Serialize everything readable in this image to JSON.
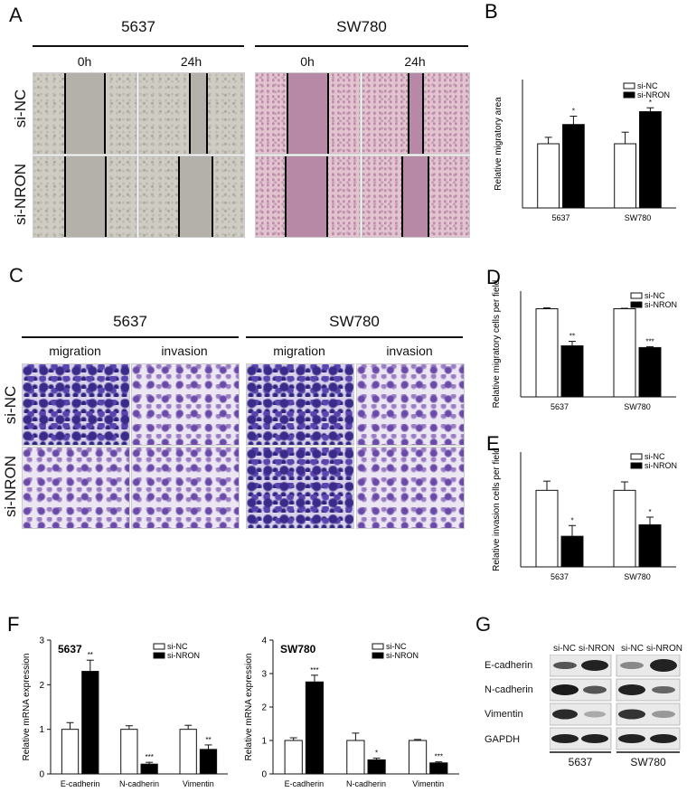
{
  "panels": {
    "A": {
      "label": "A",
      "groups": [
        "5637",
        "SW780"
      ],
      "timepoints": [
        "0h",
        "24h",
        "0h",
        "24h"
      ],
      "rows": [
        "si-NC",
        "si-NRON"
      ]
    },
    "C": {
      "label": "C",
      "groups": [
        "5637",
        "SW780"
      ],
      "assays": [
        "migration",
        "invasion",
        "migration",
        "invasion"
      ],
      "rows": [
        "si-NC",
        "si-NRON"
      ]
    },
    "G": {
      "label": "G",
      "columns": [
        "si-NC",
        "si-NRON",
        "si-NC",
        "si-NRON"
      ],
      "proteins": [
        "E-cadherin",
        "N-cadherin",
        "Vimentin",
        "GAPDH"
      ],
      "cell_lines": [
        "5637",
        "SW780"
      ]
    }
  },
  "chart_data": [
    {
      "id": "B",
      "label": "B",
      "type": "bar",
      "ylabel": "Relative migratory area",
      "categories": [
        "5637",
        "SW780"
      ],
      "ylim": [
        0,
        2
      ],
      "series": [
        {
          "name": "si-NC",
          "values": [
            1.0,
            1.0
          ],
          "errors": [
            0.1,
            0.18
          ]
        },
        {
          "name": "si-NRON",
          "values": [
            1.3,
            1.5
          ],
          "errors": [
            0.13,
            0.06
          ]
        }
      ],
      "significance": [
        "*",
        "*"
      ]
    },
    {
      "id": "D",
      "label": "D",
      "type": "bar",
      "ylabel": "Relative migratory cells per field",
      "categories": [
        "5637",
        "SW780"
      ],
      "ylim": [
        0,
        1.2
      ],
      "series": [
        {
          "name": "si-NC",
          "values": [
            1.0,
            1.0
          ],
          "errors": [
            0.01,
            0.005
          ]
        },
        {
          "name": "si-NRON",
          "values": [
            0.58,
            0.56
          ],
          "errors": [
            0.05,
            0.01
          ]
        }
      ],
      "significance": [
        "**",
        "***"
      ]
    },
    {
      "id": "E",
      "label": "E",
      "type": "bar",
      "ylabel": "Relative invasion cells per field",
      "categories": [
        "5637",
        "SW780"
      ],
      "ylim": [
        0,
        1.5
      ],
      "series": [
        {
          "name": "si-NC",
          "values": [
            1.0,
            1.0
          ],
          "errors": [
            0.12,
            0.11
          ]
        },
        {
          "name": "si-NRON",
          "values": [
            0.4,
            0.55
          ],
          "errors": [
            0.14,
            0.1
          ]
        }
      ],
      "significance": [
        "*",
        "*"
      ]
    },
    {
      "id": "F1",
      "label": "F",
      "title": "5637",
      "type": "bar",
      "ylabel": "Relative mRNA expression",
      "categories": [
        "E-cadherin",
        "N-cadherin",
        "Vimentin"
      ],
      "ylim": [
        0,
        3
      ],
      "yticks": [
        0,
        1,
        2,
        3
      ],
      "series": [
        {
          "name": "si-NC",
          "values": [
            1.0,
            1.0,
            1.0
          ],
          "errors": [
            0.15,
            0.08,
            0.09
          ]
        },
        {
          "name": "si-NRON",
          "values": [
            2.3,
            0.22,
            0.55
          ],
          "errors": [
            0.25,
            0.04,
            0.1
          ]
        }
      ],
      "significance": [
        "**",
        "***",
        "**"
      ]
    },
    {
      "id": "F2",
      "label": "",
      "title": "SW780",
      "type": "bar",
      "ylabel": "Relative mRNA expression",
      "categories": [
        "E-cadherin",
        "N-cadherin",
        "Vimentin"
      ],
      "ylim": [
        0,
        4
      ],
      "yticks": [
        0,
        1,
        2,
        3,
        4
      ],
      "series": [
        {
          "name": "si-NC",
          "values": [
            1.0,
            1.0,
            1.0
          ],
          "errors": [
            0.08,
            0.22,
            0.03
          ]
        },
        {
          "name": "si-NRON",
          "values": [
            2.75,
            0.42,
            0.33
          ],
          "errors": [
            0.2,
            0.05,
            0.03
          ]
        }
      ],
      "significance": [
        "***",
        "*",
        "***"
      ]
    }
  ]
}
